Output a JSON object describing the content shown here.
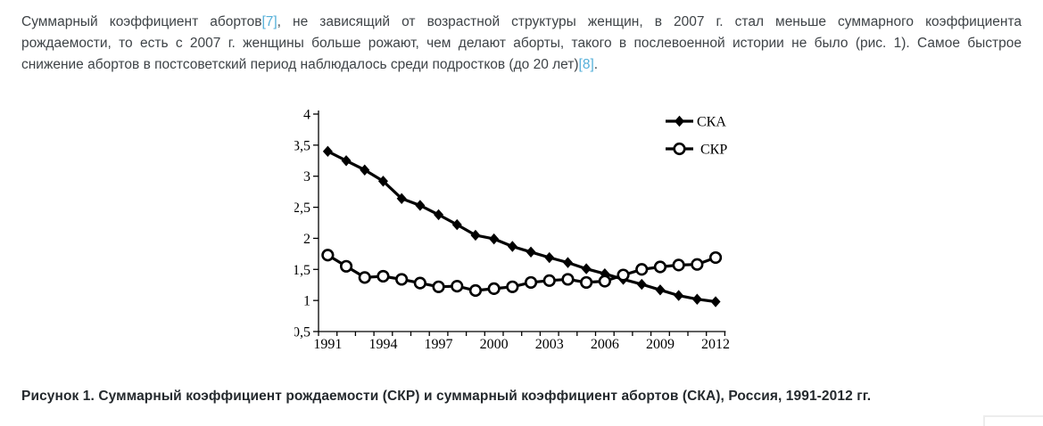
{
  "paragraph": {
    "line1_pre": "Суммарный коэффициент абортов",
    "line1_link": "[7]",
    "line1_post": ", не зависящий от возрастной структуры женщин, в 2007 г. стал меньше суммарного коэффициента",
    "line2": "рождаемости, то есть с 2007 г. женщины больше рожают, чем делают аборты, такого в послевоенной истории не было (рис. 1). Самое быстрое",
    "line3_pre": "снижение абортов в постсоветский период наблюдалось среди подростков (до 20 лет)",
    "line3_link": "[8]",
    "line3_post": ".",
    "text_color": "#3e4347",
    "link_color": "#55b0d9"
  },
  "figure_caption": {
    "text": "Рисунок 1. Суммарный коэффициент рождаемости (СКР) и суммарный коэффициент абортов (СКА), Россия, 1991-2012 гг."
  },
  "chart_data": {
    "type": "line",
    "x": [
      1991,
      1992,
      1993,
      1994,
      1995,
      1996,
      1997,
      1998,
      1999,
      2000,
      2001,
      2002,
      2003,
      2004,
      2005,
      2006,
      2007,
      2008,
      2009,
      2010,
      2011,
      2012
    ],
    "series": [
      {
        "name": "СКА",
        "marker": "filled-diamond",
        "values": [
          3.4,
          3.25,
          3.1,
          2.92,
          2.64,
          2.53,
          2.38,
          2.22,
          2.05,
          1.99,
          1.87,
          1.78,
          1.69,
          1.61,
          1.51,
          1.43,
          1.34,
          1.26,
          1.17,
          1.08,
          1.02,
          0.98
        ]
      },
      {
        "name": "СКР",
        "marker": "open-circle",
        "values": [
          1.73,
          1.55,
          1.37,
          1.39,
          1.34,
          1.28,
          1.22,
          1.23,
          1.16,
          1.19,
          1.22,
          1.29,
          1.32,
          1.34,
          1.29,
          1.31,
          1.41,
          1.5,
          1.54,
          1.57,
          1.58,
          1.69
        ]
      }
    ],
    "ylim": [
      0.5,
      4
    ],
    "ytick_step": 0.5,
    "ytick_labels": [
      "0,5",
      "1",
      "1,5",
      "2",
      "2,5",
      "3",
      "3,5",
      "4"
    ],
    "xtick_labels": [
      1991,
      1994,
      1997,
      2000,
      2003,
      2006,
      2009,
      2012
    ],
    "decimal_separator": ",",
    "line_color": "#000000",
    "background": "#ffffff",
    "grid": false,
    "legend_position": "top-right",
    "title": "",
    "xlabel": "",
    "ylabel": ""
  }
}
